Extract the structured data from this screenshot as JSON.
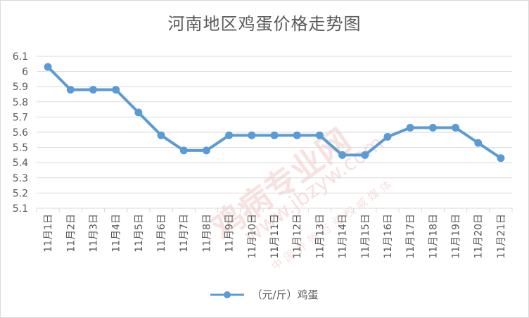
{
  "chart_data": {
    "type": "line",
    "title": "河南地区鸡蛋价格走势图",
    "categories": [
      "11月1日",
      "11月2日",
      "11月3日",
      "11月4日",
      "11月5日",
      "11月6日",
      "11月7日",
      "11月8日",
      "11月9日",
      "11月10日",
      "11月11日",
      "11月12日",
      "11月13日",
      "11月14日",
      "11月15日",
      "11月16日",
      "11月17日",
      "11月18日",
      "11月19日",
      "11月20日",
      "11月21日"
    ],
    "series": [
      {
        "name": "（元/斤）鸡蛋",
        "color": "#5b9bd5",
        "values": [
          6.03,
          5.88,
          5.88,
          5.88,
          5.73,
          5.58,
          5.48,
          5.48,
          5.58,
          5.58,
          5.58,
          5.58,
          5.58,
          5.45,
          5.45,
          5.57,
          5.63,
          5.63,
          5.63,
          5.53,
          5.43
        ]
      }
    ],
    "ylim": [
      5.1,
      6.1
    ],
    "yticks": [
      5.1,
      5.2,
      5.3,
      5.4,
      5.5,
      5.6,
      5.7,
      5.8,
      5.9,
      6,
      6.1
    ],
    "ytick_labels": [
      "5.1",
      "5.2",
      "5.3",
      "5.4",
      "5.5",
      "5.6",
      "5.7",
      "5.8",
      "5.9",
      "6",
      "6.1"
    ],
    "grid": true,
    "legend": "bottom"
  },
  "watermark": {
    "name": "鸡病专业网",
    "url": "www.jbzyw.com",
    "slogan": "中 国 养 殖 行 业 权 威 媒 体"
  }
}
